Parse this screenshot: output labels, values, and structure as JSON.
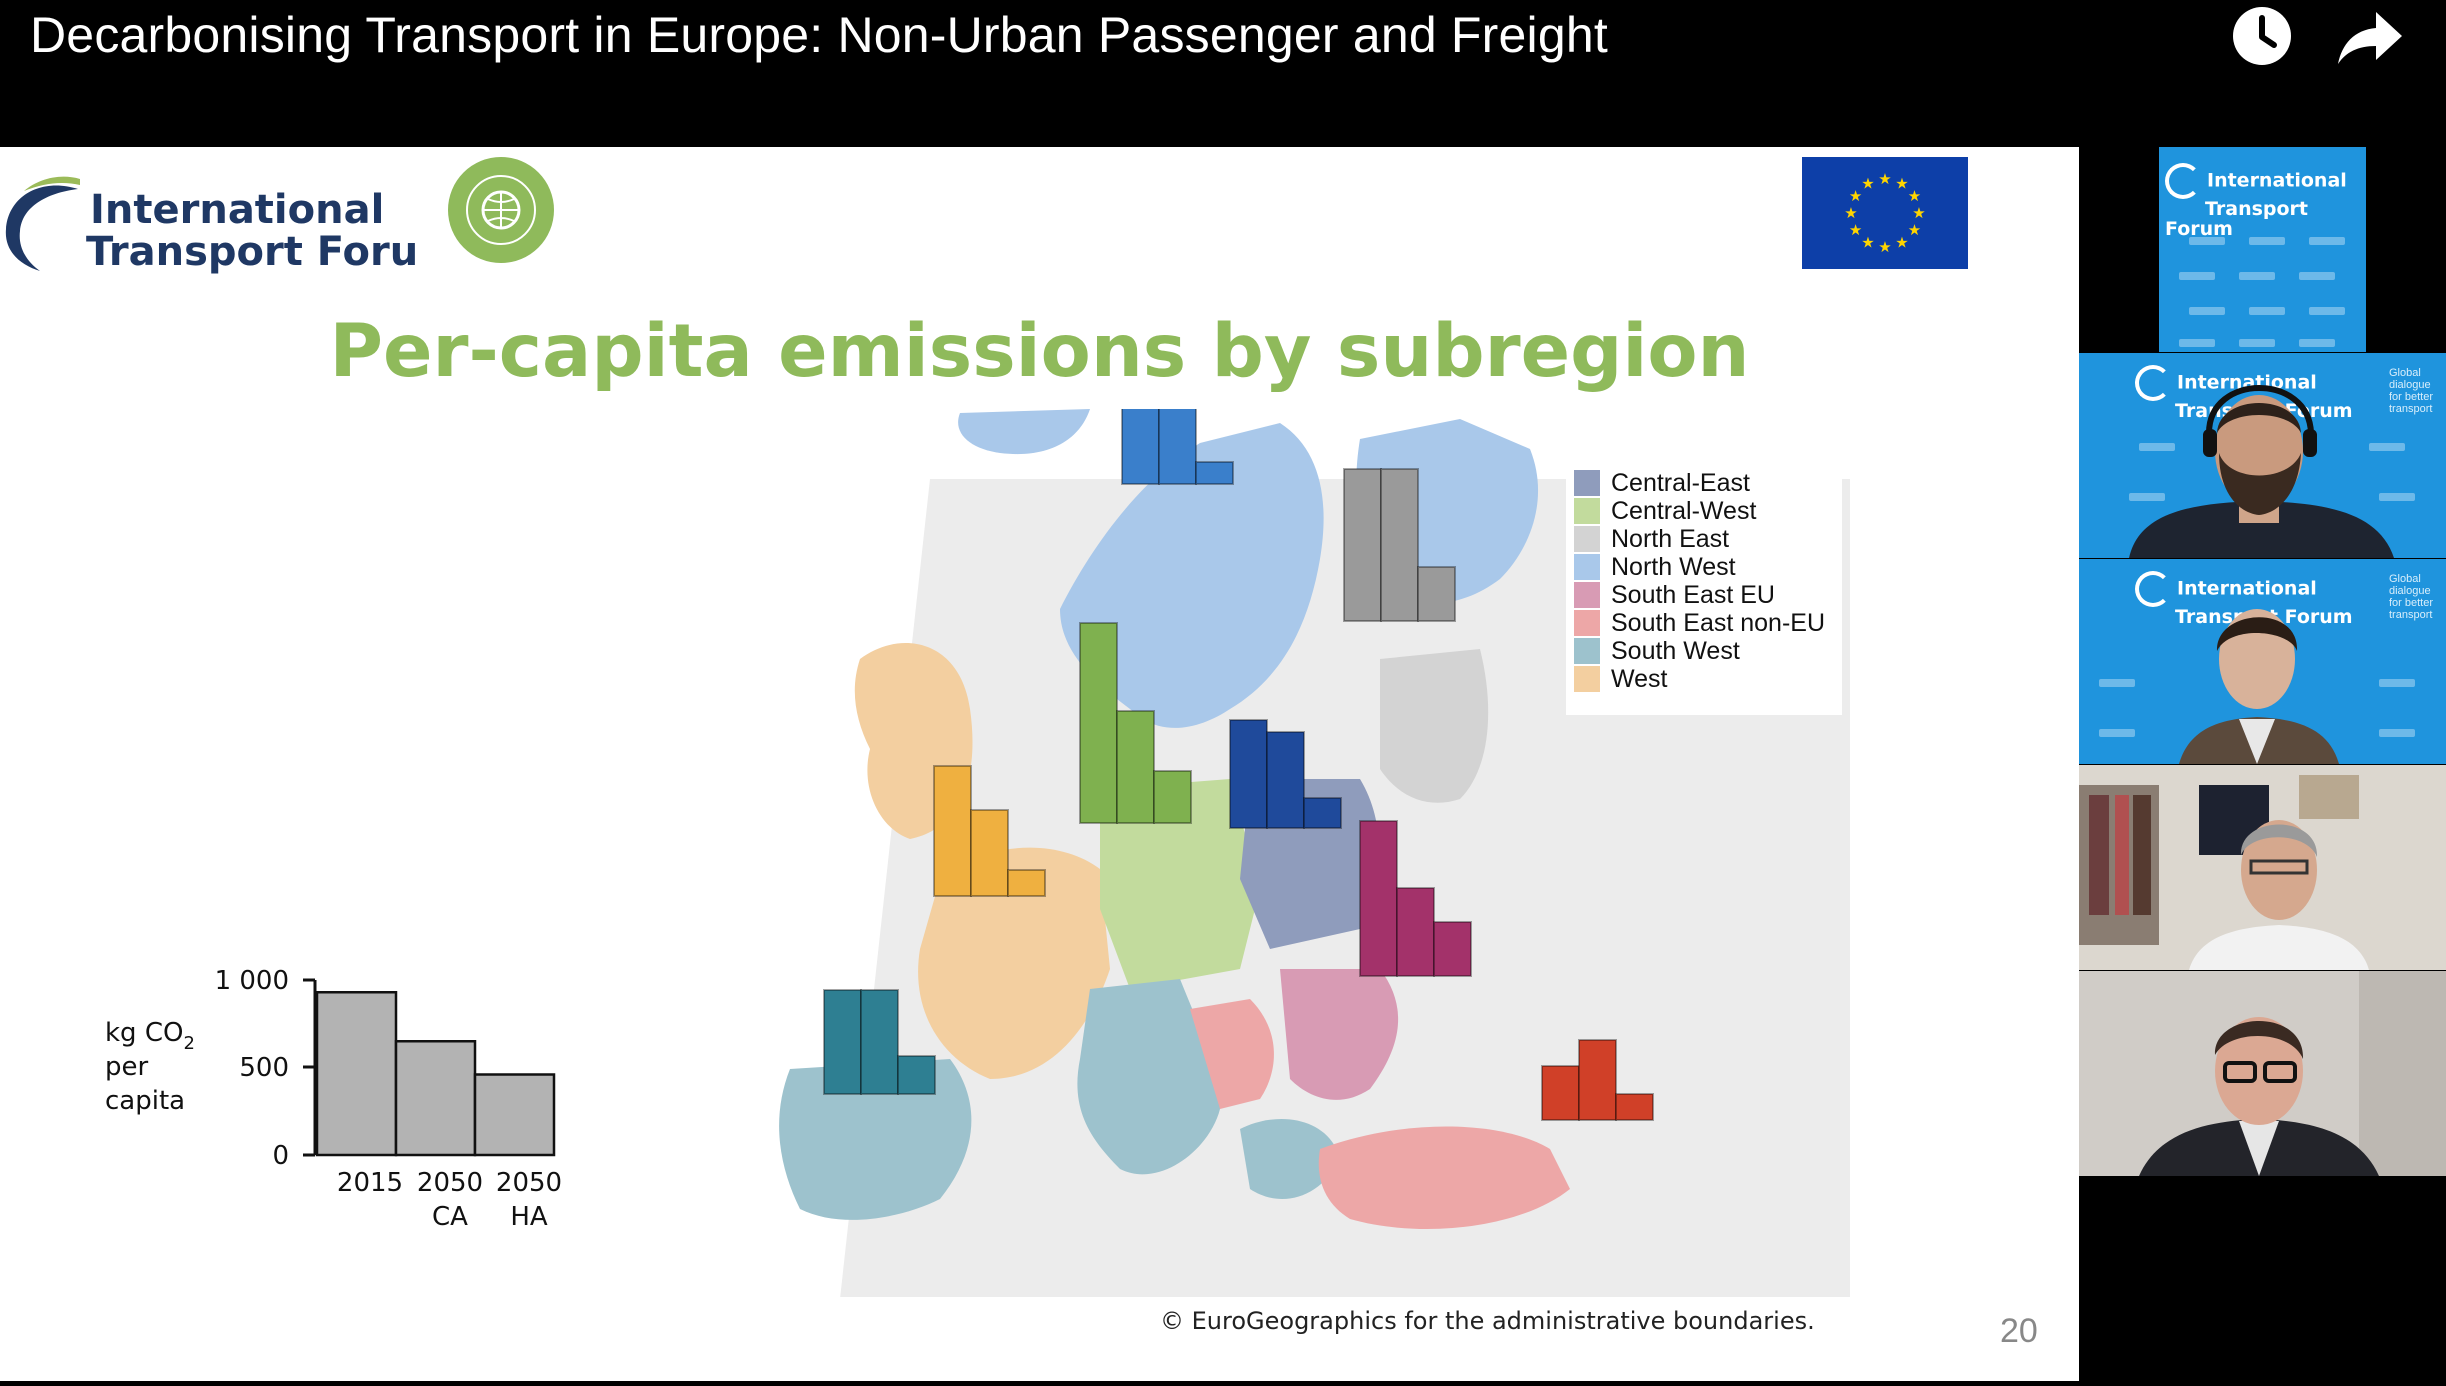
{
  "video": {
    "title": "Decarbonising Transport in Europe: Non-Urban Passenger and Freight",
    "icons": [
      "clock-icon",
      "share-arrow-icon"
    ]
  },
  "slide": {
    "org_name_line1": "International",
    "org_name_line2": "Transport Forum",
    "title": "Per-capita emissions by subregion",
    "footer_note": "© EuroGeographics for the administrative boundaries.",
    "page_number": "20",
    "legend": [
      {
        "label": "Central-East",
        "color": "#8f9cbc"
      },
      {
        "label": "Central-West",
        "color": "#c2db9d"
      },
      {
        "label": "North East",
        "color": "#d3d3d3"
      },
      {
        "label": "North West",
        "color": "#a9c8ea"
      },
      {
        "label": "South East EU",
        "color": "#d89bb4"
      },
      {
        "label": "South East non-EU",
        "color": "#eda7a7"
      },
      {
        "label": "South West",
        "color": "#9dc2cd"
      },
      {
        "label": "West",
        "color": "#f3cfa0"
      }
    ],
    "inset": {
      "ylabel_line1": "kg CO",
      "ylabel_sub": "2",
      "ylabel_line2": "per",
      "ylabel_line3": "capita",
      "yticks": [
        "1 000",
        "500",
        "0"
      ],
      "xlabels": [
        {
          "line1": "2015",
          "line2": ""
        },
        {
          "line1": "2050",
          "line2": "CA"
        },
        {
          "line1": "2050",
          "line2": "HA"
        }
      ]
    }
  },
  "chart_data": {
    "type": "bar",
    "categories": [
      "2015",
      "2050 CA",
      "2050 HA"
    ],
    "values": [
      930,
      650,
      460
    ],
    "ylim": [
      0,
      1000
    ],
    "ylabel": "kg CO2 per capita",
    "bar_color": "#b3b3b3",
    "grid": false
  },
  "participants": {
    "tile_org_line1": "International",
    "tile_org_line2": "Transport Forum",
    "tagline": [
      "Global",
      "dialogue",
      "for better",
      "transport"
    ]
  }
}
